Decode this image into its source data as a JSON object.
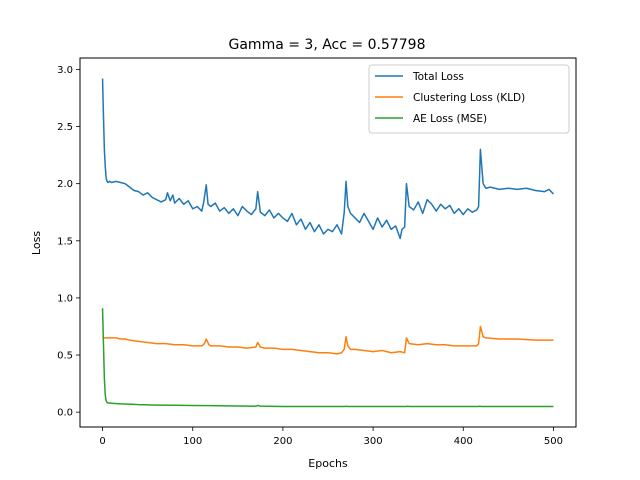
{
  "chart_data": {
    "type": "line",
    "title": "Gamma = 3, Acc = 0.57798",
    "xlabel": "Epochs",
    "ylabel": "Loss",
    "xlim": [
      -25,
      525
    ],
    "ylim": [
      -0.13,
      3.1
    ],
    "xticks": [
      0,
      100,
      200,
      300,
      400,
      500
    ],
    "yticks": [
      0.0,
      0.5,
      1.0,
      1.5,
      2.0,
      2.5,
      3.0
    ],
    "ytick_labels": [
      "0.0",
      "0.5",
      "1.0",
      "1.5",
      "2.0",
      "2.5",
      "3.0"
    ],
    "legend_position": "top-right",
    "series": [
      {
        "name": "Total Loss",
        "color": "#1f77b4",
        "x": [
          0,
          1,
          2,
          3,
          4,
          5,
          6,
          8,
          10,
          15,
          20,
          25,
          30,
          35,
          40,
          45,
          50,
          55,
          60,
          65,
          70,
          72,
          75,
          78,
          80,
          85,
          90,
          95,
          100,
          105,
          110,
          112,
          115,
          117,
          120,
          125,
          130,
          135,
          140,
          145,
          150,
          155,
          160,
          165,
          170,
          172,
          175,
          180,
          185,
          190,
          195,
          200,
          205,
          210,
          215,
          220,
          225,
          230,
          235,
          240,
          245,
          250,
          255,
          260,
          265,
          268,
          270,
          272,
          275,
          280,
          285,
          290,
          295,
          300,
          305,
          310,
          315,
          320,
          325,
          330,
          332,
          335,
          337,
          340,
          345,
          350,
          355,
          360,
          365,
          370,
          375,
          380,
          385,
          390,
          395,
          400,
          405,
          410,
          415,
          417,
          419,
          422,
          425,
          430,
          440,
          450,
          460,
          470,
          480,
          490,
          495,
          500
        ],
        "y": [
          2.92,
          2.6,
          2.3,
          2.15,
          2.05,
          2.02,
          2.01,
          2.02,
          2.01,
          2.02,
          2.01,
          2.0,
          1.97,
          1.94,
          1.93,
          1.9,
          1.92,
          1.88,
          1.86,
          1.84,
          1.86,
          1.92,
          1.85,
          1.9,
          1.83,
          1.87,
          1.82,
          1.85,
          1.78,
          1.8,
          1.76,
          1.83,
          1.99,
          1.82,
          1.8,
          1.83,
          1.76,
          1.79,
          1.74,
          1.78,
          1.72,
          1.8,
          1.76,
          1.73,
          1.78,
          1.93,
          1.75,
          1.72,
          1.77,
          1.7,
          1.74,
          1.7,
          1.67,
          1.74,
          1.64,
          1.69,
          1.6,
          1.66,
          1.58,
          1.64,
          1.56,
          1.6,
          1.58,
          1.64,
          1.56,
          1.75,
          2.02,
          1.8,
          1.74,
          1.7,
          1.66,
          1.74,
          1.67,
          1.6,
          1.7,
          1.62,
          1.68,
          1.6,
          1.63,
          1.52,
          1.6,
          1.62,
          2.0,
          1.8,
          1.77,
          1.84,
          1.74,
          1.86,
          1.82,
          1.76,
          1.82,
          1.78,
          1.81,
          1.74,
          1.78,
          1.73,
          1.78,
          1.75,
          1.77,
          1.8,
          2.3,
          2.0,
          1.96,
          1.97,
          1.95,
          1.96,
          1.95,
          1.96,
          1.94,
          1.93,
          1.95,
          1.91
        ]
      },
      {
        "name": "Clustering Loss (KLD)",
        "color": "#ff7f0e",
        "x": [
          0,
          1,
          2,
          3,
          5,
          10,
          15,
          20,
          25,
          30,
          40,
          50,
          60,
          70,
          80,
          90,
          100,
          110,
          113,
          115,
          118,
          120,
          130,
          140,
          150,
          160,
          170,
          172,
          175,
          180,
          190,
          200,
          210,
          220,
          230,
          240,
          250,
          260,
          265,
          268,
          270,
          272,
          275,
          280,
          290,
          300,
          310,
          320,
          330,
          335,
          337,
          340,
          350,
          360,
          370,
          380,
          390,
          400,
          410,
          415,
          417,
          419,
          422,
          425,
          440,
          460,
          480,
          500
        ],
        "y": [
          0.66,
          0.65,
          0.65,
          0.65,
          0.65,
          0.65,
          0.65,
          0.64,
          0.64,
          0.63,
          0.62,
          0.61,
          0.6,
          0.6,
          0.59,
          0.59,
          0.58,
          0.58,
          0.6,
          0.64,
          0.59,
          0.58,
          0.58,
          0.57,
          0.57,
          0.56,
          0.57,
          0.61,
          0.57,
          0.56,
          0.56,
          0.55,
          0.55,
          0.54,
          0.53,
          0.52,
          0.52,
          0.51,
          0.52,
          0.55,
          0.66,
          0.58,
          0.55,
          0.55,
          0.54,
          0.53,
          0.54,
          0.52,
          0.53,
          0.52,
          0.65,
          0.6,
          0.59,
          0.6,
          0.59,
          0.59,
          0.58,
          0.58,
          0.58,
          0.58,
          0.6,
          0.75,
          0.66,
          0.65,
          0.64,
          0.64,
          0.63,
          0.63
        ]
      },
      {
        "name": "AE Loss (MSE)",
        "color": "#2ca02c",
        "x": [
          0,
          1,
          2,
          3,
          4,
          5,
          6,
          8,
          10,
          20,
          30,
          40,
          60,
          80,
          100,
          120,
          140,
          160,
          170,
          172,
          175,
          200,
          220,
          240,
          260,
          268,
          270,
          272,
          280,
          300,
          320,
          336,
          338,
          340,
          360,
          380,
          400,
          416,
          418,
          420,
          440,
          460,
          480,
          500
        ],
        "y": [
          0.91,
          0.6,
          0.3,
          0.15,
          0.1,
          0.085,
          0.08,
          0.08,
          0.078,
          0.072,
          0.07,
          0.066,
          0.062,
          0.06,
          0.058,
          0.057,
          0.055,
          0.053,
          0.052,
          0.058,
          0.053,
          0.05,
          0.05,
          0.05,
          0.049,
          0.049,
          0.052,
          0.05,
          0.049,
          0.049,
          0.049,
          0.049,
          0.052,
          0.05,
          0.05,
          0.05,
          0.05,
          0.05,
          0.052,
          0.05,
          0.05,
          0.049,
          0.049,
          0.049
        ]
      }
    ]
  }
}
